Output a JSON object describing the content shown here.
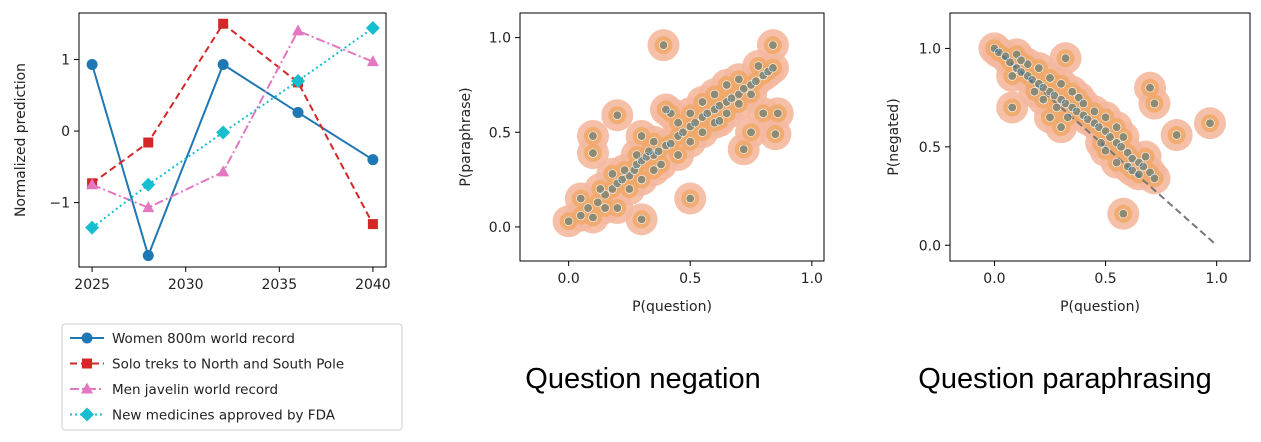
{
  "chart_data": [
    {
      "type": "line",
      "title": "",
      "xlabel": "",
      "ylabel": "Normalized prediction",
      "xlim": [
        2024.3,
        2040.7
      ],
      "ylim": [
        -1.9,
        1.65
      ],
      "xticks": [
        2025,
        2030,
        2035,
        2040
      ],
      "yticks": [
        -1,
        0,
        1
      ],
      "ytick_labels": [
        "−1",
        "0",
        "1"
      ],
      "grid": false,
      "legend_placement": "below",
      "series": [
        {
          "name": "Women 800m world record",
          "color": "#1f77b4",
          "marker": "circle",
          "linestyle": "solid",
          "x": [
            2025,
            2028,
            2032,
            2036,
            2040
          ],
          "y": [
            0.93,
            -1.74,
            0.93,
            0.26,
            -0.4
          ]
        },
        {
          "name": "Solo treks to North and South Pole",
          "color": "#d62728",
          "marker": "square",
          "linestyle": "dashed",
          "x": [
            2025,
            2028,
            2032,
            2036,
            2040
          ],
          "y": [
            -0.73,
            -0.16,
            1.5,
            0.68,
            -1.3
          ]
        },
        {
          "name": "Men javelin world record",
          "color": "#e377c2",
          "marker": "triangle",
          "linestyle": "dashdot",
          "x": [
            2025,
            2028,
            2032,
            2036,
            2040
          ],
          "y": [
            -0.75,
            -1.07,
            -0.57,
            1.4,
            0.97
          ]
        },
        {
          "name": "New medicines approved by FDA",
          "color": "#17becf",
          "marker": "diamond",
          "linestyle": "dotted",
          "x": [
            2025,
            2028,
            2032,
            2036,
            2040
          ],
          "y": [
            -1.35,
            -0.75,
            -0.02,
            0.7,
            1.44
          ]
        }
      ]
    },
    {
      "type": "scatter",
      "title": "",
      "caption": "Question negation",
      "xlabel": "P(question)",
      "ylabel": "P(paraphrase)",
      "xlim": [
        -0.2,
        1.05
      ],
      "ylim": [
        -0.18,
        1.13
      ],
      "xticks": [
        0.0,
        0.5,
        1.0
      ],
      "yticks": [
        0.0,
        0.5,
        1.0
      ],
      "grid": false,
      "point_color": "#1f77b4",
      "density_colors": [
        "#f4b89e",
        "#f0a868",
        "#e8932e"
      ],
      "points": [
        [
          0.39,
          0.96
        ],
        [
          0.84,
          0.96
        ],
        [
          0.1,
          0.48
        ],
        [
          0.1,
          0.39
        ],
        [
          0.2,
          0.59
        ],
        [
          0.86,
          0.6
        ],
        [
          0.85,
          0.49
        ],
        [
          0.72,
          0.41
        ],
        [
          0.5,
          0.15
        ],
        [
          0.3,
          0.04
        ],
        [
          0.0,
          0.03
        ],
        [
          0.05,
          0.06
        ],
        [
          0.08,
          0.1
        ],
        [
          0.12,
          0.13
        ],
        [
          0.15,
          0.17
        ],
        [
          0.18,
          0.2
        ],
        [
          0.2,
          0.23
        ],
        [
          0.22,
          0.25
        ],
        [
          0.25,
          0.27
        ],
        [
          0.27,
          0.3
        ],
        [
          0.28,
          0.33
        ],
        [
          0.3,
          0.35
        ],
        [
          0.32,
          0.37
        ],
        [
          0.35,
          0.38
        ],
        [
          0.37,
          0.4
        ],
        [
          0.4,
          0.43
        ],
        [
          0.42,
          0.44
        ],
        [
          0.45,
          0.48
        ],
        [
          0.47,
          0.5
        ],
        [
          0.5,
          0.53
        ],
        [
          0.52,
          0.55
        ],
        [
          0.55,
          0.58
        ],
        [
          0.57,
          0.6
        ],
        [
          0.6,
          0.62
        ],
        [
          0.62,
          0.64
        ],
        [
          0.65,
          0.66
        ],
        [
          0.67,
          0.68
        ],
        [
          0.7,
          0.7
        ],
        [
          0.72,
          0.73
        ],
        [
          0.75,
          0.75
        ],
        [
          0.77,
          0.77
        ],
        [
          0.8,
          0.8
        ],
        [
          0.82,
          0.82
        ],
        [
          0.84,
          0.84
        ],
        [
          0.25,
          0.2
        ],
        [
          0.3,
          0.25
        ],
        [
          0.35,
          0.3
        ],
        [
          0.38,
          0.33
        ],
        [
          0.33,
          0.4
        ],
        [
          0.28,
          0.38
        ],
        [
          0.23,
          0.3
        ],
        [
          0.18,
          0.28
        ],
        [
          0.13,
          0.2
        ],
        [
          0.45,
          0.38
        ],
        [
          0.55,
          0.5
        ],
        [
          0.6,
          0.55
        ],
        [
          0.65,
          0.6
        ],
        [
          0.7,
          0.65
        ],
        [
          0.75,
          0.7
        ],
        [
          0.6,
          0.7
        ],
        [
          0.55,
          0.66
        ],
        [
          0.5,
          0.6
        ],
        [
          0.65,
          0.75
        ],
        [
          0.7,
          0.78
        ],
        [
          0.78,
          0.85
        ],
        [
          0.42,
          0.6
        ],
        [
          0.4,
          0.62
        ],
        [
          0.15,
          0.1
        ],
        [
          0.1,
          0.05
        ],
        [
          0.05,
          0.15
        ],
        [
          0.2,
          0.1
        ],
        [
          0.75,
          0.5
        ],
        [
          0.8,
          0.6
        ],
        [
          0.35,
          0.45
        ],
        [
          0.3,
          0.48
        ],
        [
          0.5,
          0.45
        ],
        [
          0.45,
          0.55
        ],
        [
          0.62,
          0.56
        ]
      ]
    },
    {
      "type": "scatter",
      "title": "",
      "caption": "Question paraphrasing",
      "xlabel": "P(question)",
      "ylabel": "P(negated)",
      "xlim": [
        -0.2,
        1.15
      ],
      "ylim": [
        -0.08,
        1.18
      ],
      "xticks": [
        0.0,
        0.5,
        1.0
      ],
      "yticks": [
        0.0,
        0.5,
        1.0
      ],
      "grid": false,
      "point_color": "#1f77b4",
      "density_colors": [
        "#f4b89e",
        "#f0a868",
        "#e8932e"
      ],
      "reference_line": {
        "x": [
          0.0,
          1.0
        ],
        "y": [
          1.0,
          0.0
        ],
        "style": "dashed",
        "color": "#777777"
      },
      "points": [
        [
          0.32,
          0.95
        ],
        [
          0.7,
          0.8
        ],
        [
          0.97,
          0.62
        ],
        [
          0.08,
          0.7
        ],
        [
          0.72,
          0.72
        ],
        [
          0.82,
          0.56
        ],
        [
          0.58,
          0.16
        ],
        [
          0.0,
          1.0
        ],
        [
          0.02,
          0.98
        ],
        [
          0.05,
          0.96
        ],
        [
          0.07,
          0.93
        ],
        [
          0.1,
          0.9
        ],
        [
          0.12,
          0.88
        ],
        [
          0.15,
          0.86
        ],
        [
          0.17,
          0.84
        ],
        [
          0.2,
          0.82
        ],
        [
          0.22,
          0.8
        ],
        [
          0.25,
          0.78
        ],
        [
          0.27,
          0.76
        ],
        [
          0.3,
          0.74
        ],
        [
          0.32,
          0.72
        ],
        [
          0.35,
          0.7
        ],
        [
          0.37,
          0.68
        ],
        [
          0.4,
          0.66
        ],
        [
          0.42,
          0.64
        ],
        [
          0.45,
          0.62
        ],
        [
          0.47,
          0.6
        ],
        [
          0.5,
          0.58
        ],
        [
          0.52,
          0.55
        ],
        [
          0.55,
          0.52
        ],
        [
          0.57,
          0.5
        ],
        [
          0.6,
          0.47
        ],
        [
          0.62,
          0.44
        ],
        [
          0.65,
          0.42
        ],
        [
          0.67,
          0.4
        ],
        [
          0.7,
          0.37
        ],
        [
          0.72,
          0.34
        ],
        [
          0.15,
          0.92
        ],
        [
          0.2,
          0.9
        ],
        [
          0.25,
          0.85
        ],
        [
          0.3,
          0.82
        ],
        [
          0.35,
          0.78
        ],
        [
          0.38,
          0.75
        ],
        [
          0.18,
          0.78
        ],
        [
          0.22,
          0.74
        ],
        [
          0.28,
          0.7
        ],
        [
          0.33,
          0.65
        ],
        [
          0.4,
          0.72
        ],
        [
          0.45,
          0.68
        ],
        [
          0.5,
          0.65
        ],
        [
          0.55,
          0.6
        ],
        [
          0.6,
          0.4
        ],
        [
          0.55,
          0.42
        ],
        [
          0.5,
          0.48
        ],
        [
          0.48,
          0.52
        ],
        [
          0.62,
          0.38
        ],
        [
          0.65,
          0.36
        ],
        [
          0.68,
          0.45
        ],
        [
          0.58,
          0.55
        ],
        [
          0.1,
          0.97
        ],
        [
          0.12,
          0.94
        ],
        [
          0.08,
          0.86
        ],
        [
          0.25,
          0.65
        ],
        [
          0.3,
          0.6
        ]
      ]
    }
  ]
}
